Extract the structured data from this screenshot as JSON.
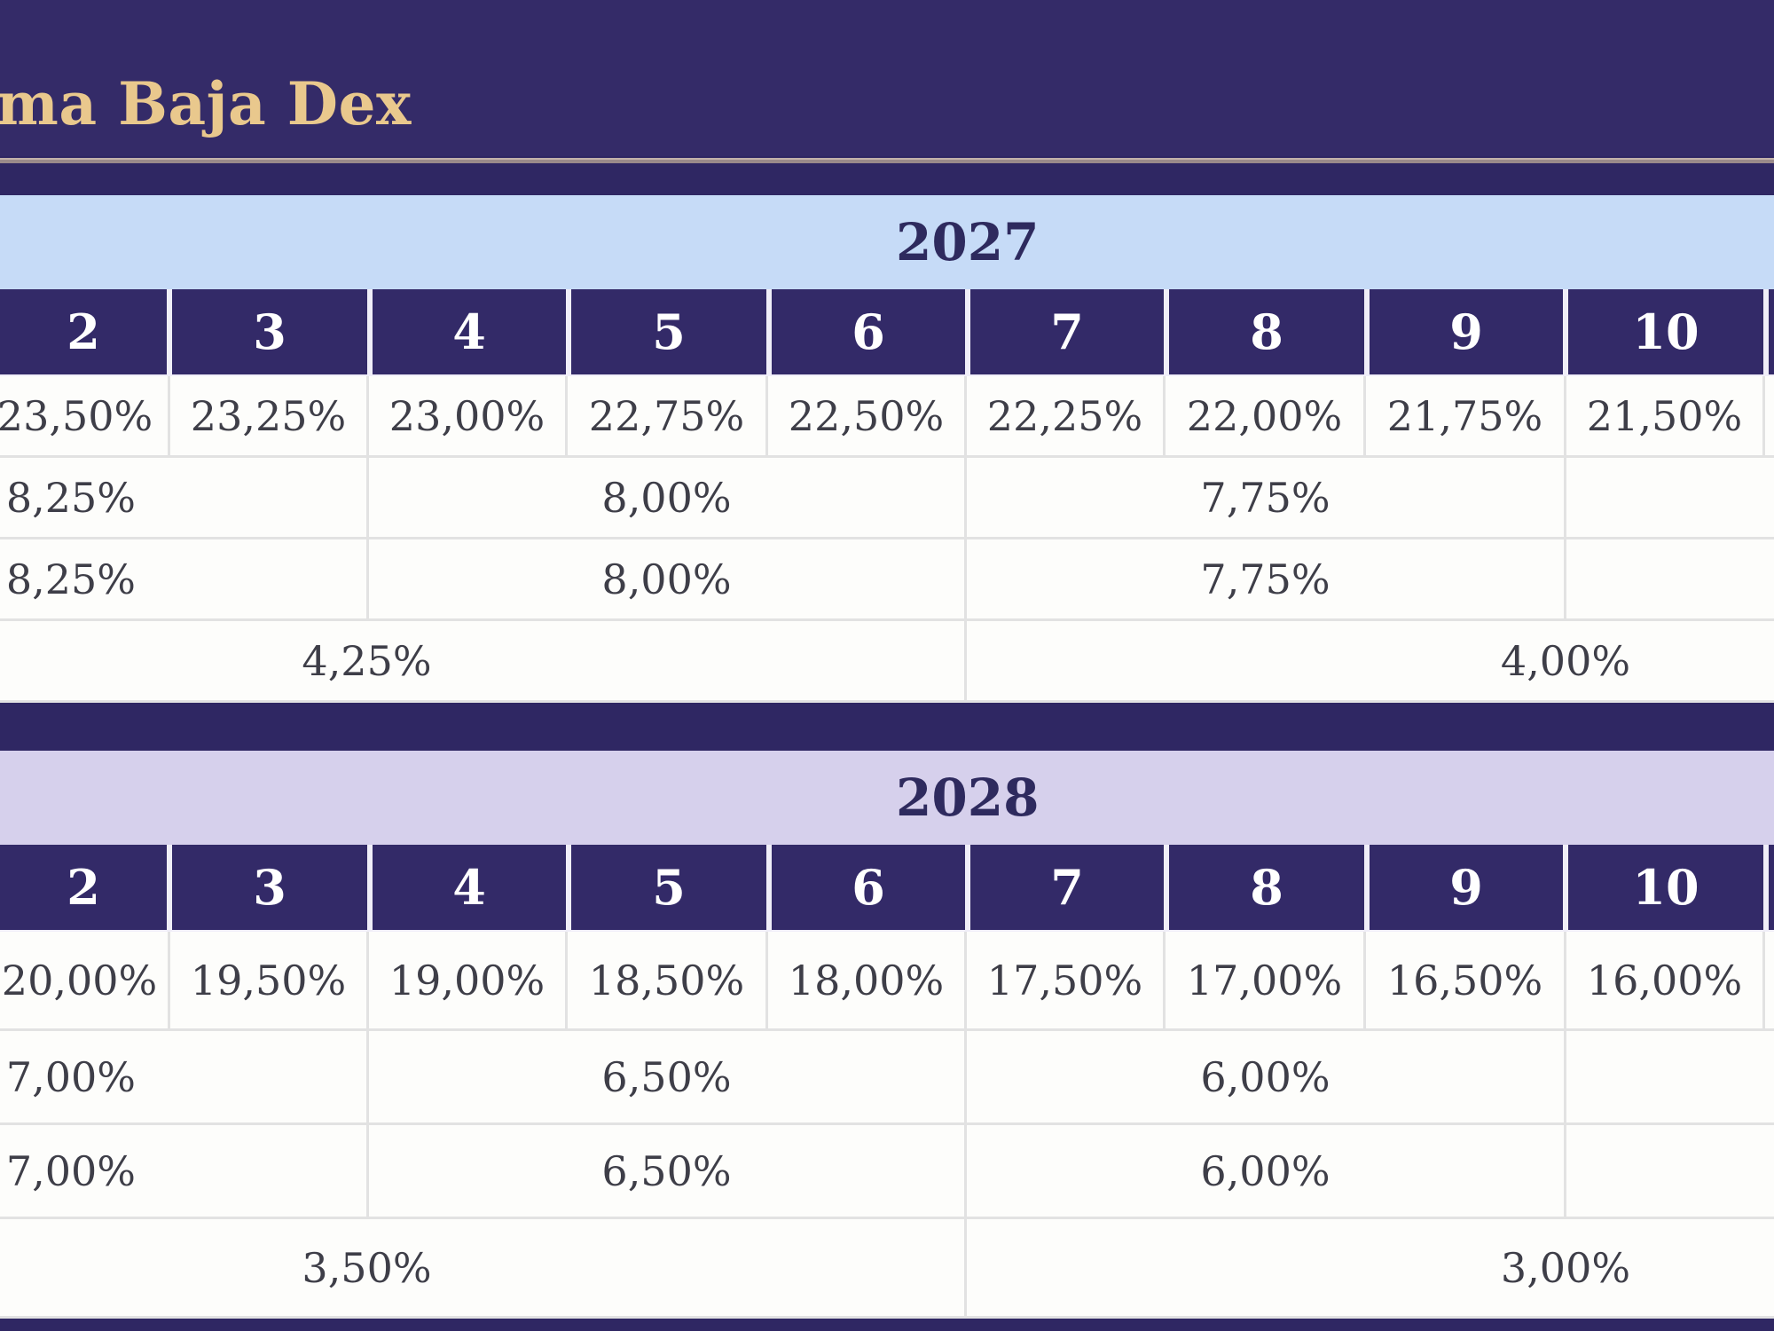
{
  "title": "ma Baja Dex",
  "colors": {
    "banner_bg": "#342b68",
    "title_text": "#e9c88d",
    "header_cell_bg": "#332a68",
    "year_2027_band": "#c6dbf7",
    "year_2028_band": "#d6d0ec"
  },
  "years": [
    {
      "year": "2027",
      "months": [
        "2",
        "3",
        "4",
        "5",
        "6",
        "7",
        "8",
        "9",
        "10"
      ],
      "monthly_rates": [
        "23,50%",
        "23,25%",
        "23,00%",
        "22,75%",
        "22,50%",
        "22,25%",
        "22,00%",
        "21,75%",
        "21,50%"
      ],
      "row_b": [
        "8,25%",
        "8,00%",
        "7,75%"
      ],
      "row_c": [
        "8,25%",
        "8,00%",
        "7,75%"
      ],
      "row_d": [
        "4,25%",
        "4,00%"
      ]
    },
    {
      "year": "2028",
      "months": [
        "2",
        "3",
        "4",
        "5",
        "6",
        "7",
        "8",
        "9",
        "10"
      ],
      "monthly_rates": [
        "20,00%",
        "19,50%",
        "19,00%",
        "18,50%",
        "18,00%",
        "17,50%",
        "17,00%",
        "16,50%",
        "16,00%"
      ],
      "row_b": [
        "7,00%",
        "6,50%",
        "6,00%"
      ],
      "row_c": [
        "7,00%",
        "6,50%",
        "6,00%"
      ],
      "row_d": [
        "3,50%",
        "3,00%"
      ]
    }
  ]
}
